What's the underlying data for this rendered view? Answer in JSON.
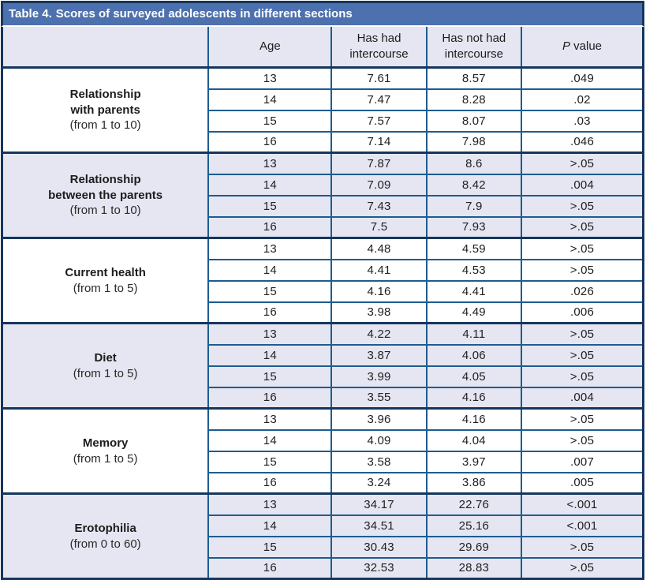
{
  "title": {
    "prefix": "Table 4.",
    "text": "Scores of surveyed adolescents in different sections"
  },
  "header": {
    "age": "Age",
    "has_had": "Has had\nintercourse",
    "has_not_had": "Has not had\nintercourse",
    "p_italic": "P",
    "p_rest": " value"
  },
  "colors": {
    "title_bar": "#4d71ae",
    "band": "#e6e6f2",
    "grid_line": "#1e5c90",
    "outer_border": "#16365d",
    "title_text": "#ffffff",
    "body_text": "#242424"
  },
  "sections": [
    {
      "name": "Relationship\nwith parents",
      "range": "(from 1 to 10)",
      "rows": [
        {
          "age": "13",
          "has_had": "7.61",
          "has_not_had": "8.57",
          "p": ".049"
        },
        {
          "age": "14",
          "has_had": "7.47",
          "has_not_had": "8.28",
          "p": ".02"
        },
        {
          "age": "15",
          "has_had": "7.57",
          "has_not_had": "8.07",
          "p": ".03"
        },
        {
          "age": "16",
          "has_had": "7.14",
          "has_not_had": "7.98",
          "p": ".046"
        }
      ]
    },
    {
      "name": "Relationship\nbetween the parents",
      "range": "(from 1 to 10)",
      "rows": [
        {
          "age": "13",
          "has_had": "7.87",
          "has_not_had": "8.6",
          "p": ">.05"
        },
        {
          "age": "14",
          "has_had": "7.09",
          "has_not_had": "8.42",
          "p": ".004"
        },
        {
          "age": "15",
          "has_had": "7.43",
          "has_not_had": "7.9",
          "p": ">.05"
        },
        {
          "age": "16",
          "has_had": "7.5",
          "has_not_had": "7.93",
          "p": ">.05"
        }
      ]
    },
    {
      "name": "Current health",
      "range": "(from 1 to 5)",
      "rows": [
        {
          "age": "13",
          "has_had": "4.48",
          "has_not_had": "4.59",
          "p": ">.05"
        },
        {
          "age": "14",
          "has_had": "4.41",
          "has_not_had": "4.53",
          "p": ">.05"
        },
        {
          "age": "15",
          "has_had": "4.16",
          "has_not_had": "4.41",
          "p": ".026"
        },
        {
          "age": "16",
          "has_had": "3.98",
          "has_not_had": "4.49",
          "p": ".006"
        }
      ]
    },
    {
      "name": "Diet",
      "range": "(from 1 to 5)",
      "rows": [
        {
          "age": "13",
          "has_had": "4.22",
          "has_not_had": "4.11",
          "p": ">.05"
        },
        {
          "age": "14",
          "has_had": "3.87",
          "has_not_had": "4.06",
          "p": ">.05"
        },
        {
          "age": "15",
          "has_had": "3.99",
          "has_not_had": "4.05",
          "p": ">.05"
        },
        {
          "age": "16",
          "has_had": "3.55",
          "has_not_had": "4.16",
          "p": ".004"
        }
      ]
    },
    {
      "name": "Memory",
      "range": "(from 1 to 5)",
      "rows": [
        {
          "age": "13",
          "has_had": "3.96",
          "has_not_had": "4.16",
          "p": ">.05"
        },
        {
          "age": "14",
          "has_had": "4.09",
          "has_not_had": "4.04",
          "p": ">.05"
        },
        {
          "age": "15",
          "has_had": "3.58",
          "has_not_had": "3.97",
          "p": ".007"
        },
        {
          "age": "16",
          "has_had": "3.24",
          "has_not_had": "3.86",
          "p": ".005"
        }
      ]
    },
    {
      "name": "Erotophilia",
      "range": "(from 0 to 60)",
      "rows": [
        {
          "age": "13",
          "has_had": "34.17",
          "has_not_had": "22.76",
          "p": "<.001"
        },
        {
          "age": "14",
          "has_had": "34.51",
          "has_not_had": "25.16",
          "p": "<.001"
        },
        {
          "age": "15",
          "has_had": "30.43",
          "has_not_had": "29.69",
          "p": ">.05"
        },
        {
          "age": "16",
          "has_had": "32.53",
          "has_not_had": "28.83",
          "p": ">.05"
        }
      ]
    }
  ]
}
